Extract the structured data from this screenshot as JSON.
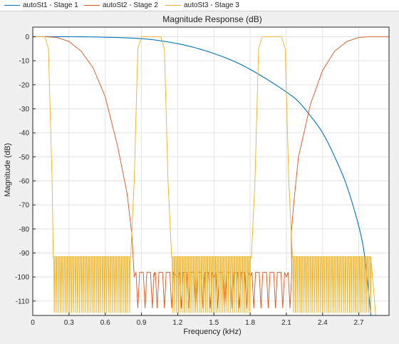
{
  "legend": [
    {
      "label": "autoSt1 - Stage 1",
      "color": "#0072BD"
    },
    {
      "label": "autoSt2 - Stage 2",
      "color": "#D95319"
    },
    {
      "label": "autoSt3 - Stage 3",
      "color": "#EDB120"
    }
  ],
  "chart_data": {
    "type": "line",
    "title": "Magnitude Response (dB)",
    "xlabel": "Frequency (kHz)",
    "ylabel": "Magnitude (dB)",
    "xlim": [
      0,
      2.95
    ],
    "ylim": [
      -116,
      4
    ],
    "xticks": [
      0,
      0.3,
      0.6,
      0.9,
      1.2,
      1.5,
      1.8,
      2.1,
      2.4,
      2.7
    ],
    "xtick_labels": [
      "0",
      "0.3",
      "0.6",
      "0.9",
      "1.2",
      "1.5",
      "1.8",
      "2.1",
      "2.4",
      "2.7"
    ],
    "yticks": [
      0,
      -10,
      -20,
      -30,
      -40,
      -50,
      -60,
      -70,
      -80,
      -90,
      -100,
      -110
    ],
    "ytick_labels": [
      "0",
      "-10",
      "-20",
      "-30",
      "-40",
      "-50",
      "-60",
      "-70",
      "-80",
      "-90",
      "-100",
      "-110"
    ],
    "grid": true,
    "legend_position": "top",
    "series": [
      {
        "name": "autoSt1 - Stage 1",
        "color": "#0072BD",
        "x": [
          0,
          0.3,
          0.6,
          0.9,
          1.1,
          1.3,
          1.5,
          1.7,
          1.9,
          2.1,
          2.2,
          2.3,
          2.4,
          2.5,
          2.6,
          2.7,
          2.75,
          2.8
        ],
        "y": [
          0,
          0,
          -0.2,
          -0.8,
          -2,
          -4,
          -7,
          -11,
          -16.5,
          -23,
          -27,
          -33,
          -40,
          -50,
          -62,
          -79,
          -92,
          -116
        ]
      },
      {
        "name": "autoSt2 - Stage 2",
        "color": "#D95319",
        "notes": "stopband ripple floor near -100 dB between lobes",
        "x": [
          0,
          0.1,
          0.2,
          0.3,
          0.4,
          0.5,
          0.6,
          0.7,
          0.78,
          0.82,
          0.84,
          1.0,
          1.2,
          1.5,
          1.8,
          2.1,
          2.14,
          2.16,
          2.2,
          2.3,
          2.4,
          2.5,
          2.6,
          2.7,
          2.8,
          2.9,
          2.95
        ],
        "y": [
          0,
          0,
          -0.3,
          -2,
          -6,
          -13,
          -25,
          -45,
          -65,
          -82,
          -100,
          -100,
          -100,
          -100,
          -100,
          -100,
          -82,
          -70,
          -50,
          -28,
          -14,
          -6,
          -2,
          -0.3,
          0,
          0,
          0
        ],
        "ripple": {
          "intervals": [
            [
              0.84,
              2.14
            ]
          ],
          "period": 0.06,
          "top": -98,
          "bottom": -113
        }
      },
      {
        "name": "autoSt3 - Stage 3",
        "color": "#EDB120",
        "x": [
          0,
          0.1,
          0.13,
          0.16,
          0.17,
          0.81,
          0.84,
          0.87,
          0.9,
          1.06,
          1.09,
          1.12,
          1.15,
          1.81,
          1.84,
          1.87,
          1.9,
          2.06,
          2.09,
          2.12,
          2.15,
          2.8,
          2.84,
          2.95
        ],
        "y": [
          0,
          0,
          -5,
          -60,
          -92,
          -92,
          -60,
          -5,
          0,
          0,
          -5,
          -60,
          -92,
          -92,
          -60,
          -5,
          0,
          0,
          -5,
          -60,
          -92,
          -92,
          -116,
          -116
        ],
        "ripple": {
          "intervals": [
            [
              0.17,
              0.81
            ],
            [
              1.15,
              1.81
            ],
            [
              2.15,
              2.8
            ]
          ],
          "period": 0.016,
          "top": -91.5,
          "bottom": -115
        }
      }
    ]
  }
}
